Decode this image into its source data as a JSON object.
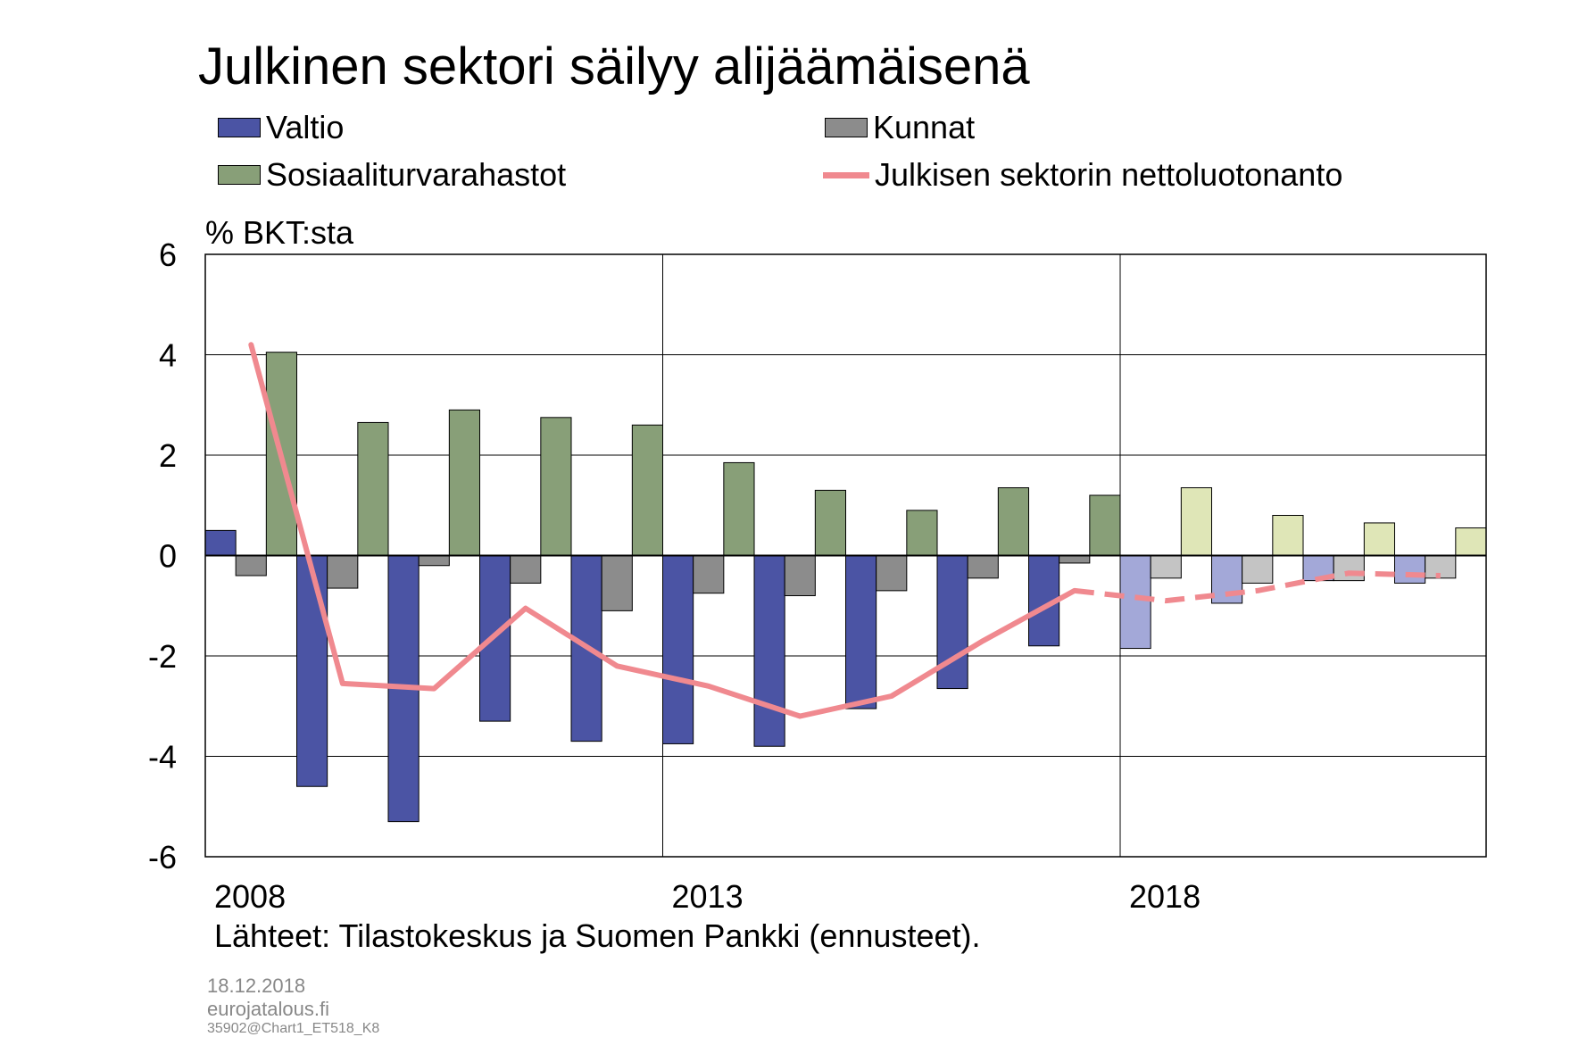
{
  "title": "Julkinen sektori säilyy alijäämäisenä",
  "legend": [
    {
      "label": "Valtio",
      "kind": "bar",
      "color": "#4b54a4"
    },
    {
      "label": "Kunnat",
      "kind": "bar",
      "color": "#8c8c8c"
    },
    {
      "label": "Sosiaaliturvarahastot",
      "kind": "bar",
      "color": "#889f78"
    },
    {
      "label": "Julkisen sektorin nettoluotonanto",
      "kind": "line",
      "color": "#f0898f"
    }
  ],
  "ylabel": "% BKT:sta",
  "source": "Lähteet: Tilastokeskus ja Suomen Pankki (ennusteet).",
  "footer": {
    "date": "18.12.2018",
    "site": "eurojatalous.fi",
    "code": "35902@Chart1_ET518_K8"
  },
  "chart_data": {
    "type": "bar",
    "years": [
      2008,
      2009,
      2010,
      2011,
      2012,
      2013,
      2014,
      2015,
      2016,
      2017,
      2018,
      2019,
      2020,
      2021
    ],
    "x_tick_labels": [
      {
        "year": 2008,
        "label": "2008"
      },
      {
        "year": 2013,
        "label": "2013"
      },
      {
        "year": 2018,
        "label": "2018"
      }
    ],
    "ylim": [
      -6,
      6
    ],
    "y_ticks": [
      6,
      4,
      2,
      0,
      -2,
      -4,
      -6
    ],
    "y_tick_labels": [
      "6",
      "4",
      "2",
      "0",
      "-2",
      "-4",
      "-6"
    ],
    "grid": true,
    "forecast_from": 2018,
    "series": [
      {
        "name": "Valtio",
        "type": "bar",
        "color": "#4b54a4",
        "forecast_color": "#a3a8d8",
        "values": [
          0.5,
          -4.6,
          -5.3,
          -3.3,
          -3.7,
          -3.75,
          -3.8,
          -3.05,
          -2.65,
          -1.8,
          -1.85,
          -0.95,
          -0.5,
          -0.55
        ]
      },
      {
        "name": "Kunnat",
        "type": "bar",
        "color": "#8c8c8c",
        "forecast_color": "#c4c4c4",
        "values": [
          -0.4,
          -0.65,
          -0.2,
          -0.55,
          -1.1,
          -0.75,
          -0.8,
          -0.7,
          -0.45,
          -0.15,
          -0.45,
          -0.55,
          -0.5,
          -0.45
        ]
      },
      {
        "name": "Sosiaaliturvarahastot",
        "type": "bar",
        "color": "#889f78",
        "forecast_color": "#dfe6b7",
        "values": [
          4.05,
          2.65,
          2.9,
          2.75,
          2.6,
          1.85,
          1.3,
          0.9,
          1.35,
          1.2,
          1.35,
          0.8,
          0.65,
          0.55
        ]
      },
      {
        "name": "Julkisen sektorin nettoluotonanto",
        "type": "line",
        "color": "#f0898f",
        "values": [
          4.2,
          -2.55,
          -2.65,
          -1.05,
          -2.2,
          -2.6,
          -3.2,
          -2.8,
          -1.7,
          -0.7,
          -0.9,
          -0.7,
          -0.35,
          -0.4
        ]
      }
    ]
  }
}
